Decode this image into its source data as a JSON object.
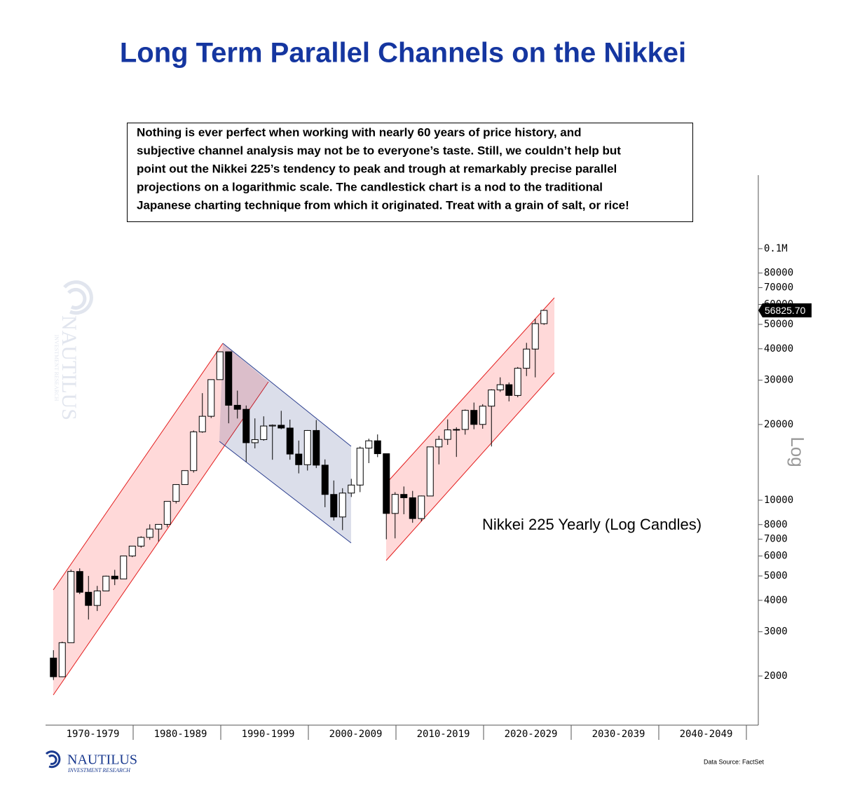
{
  "chart_data": {
    "type": "candlestick",
    "title": "Long Term Parallel Channels on the Nikkei",
    "note": [
      "Nothing is ever perfect when working with nearly 60 years of price history, and",
      "subjective channel analysis may not be to everyone’s taste. Still, we couldn’t help but",
      "point out the Nikkei 225’s tendency to peak and trough at remarkably precise parallel",
      "projections on a logarithmic scale. The candlestick chart is a nod to the traditional",
      "Japanese charting technique from which it originated.  Treat with a grain of salt, or rice!"
    ],
    "annotation": "Nikkei 225 Yearly (Log Candles)",
    "y_label": "Log",
    "log_scale": true,
    "categories": [
      "1970-1979",
      "1980-1989",
      "1990-1999",
      "2000-2009",
      "2010-2019",
      "2020-2029",
      "2030-2039",
      "2040-2049"
    ],
    "ylim": [
      1276,
      196000
    ],
    "yticks": [
      {
        "value": 100000,
        "label": "0.1M"
      },
      80000,
      70000,
      60000,
      50000,
      40000,
      30000,
      20000,
      10000,
      8000,
      7000,
      6000,
      5000,
      4000,
      3000,
      2000
    ],
    "open": [
      2358,
      1987,
      2714,
      5208,
      4307,
      3817,
      4359,
      4991,
      4866,
      6002,
      6570,
      7116,
      7682,
      8017,
      9894,
      11543,
      13113,
      18701,
      21564,
      30159,
      38916,
      23849,
      22984,
      16925,
      17417,
      19723,
      19868,
      19361,
      15259,
      13842,
      18934,
      13786,
      10543,
      8579,
      10677,
      11489,
      16111,
      17226,
      15308,
      8860,
      10546,
      10229,
      8455,
      10395,
      16291,
      17451,
      19034,
      19114,
      22765,
      20015,
      23657,
      27444,
      28792,
      26095,
      33464,
      39895,
      50339
    ],
    "high": [
      2534,
      2740,
      5300,
      5359,
      5000,
      4564,
      5013,
      5287,
      6018,
      6590,
      7188,
      8019,
      8026,
      9900,
      11577,
      13129,
      18937,
      26646,
      30159,
      38957,
      38951,
      27270,
      23801,
      21148,
      21552,
      20011,
      22666,
      20910,
      17264,
      19000,
      20833,
      14529,
      11979,
      11161,
      12163,
      16344,
      17563,
      18262,
      15308,
      10767,
      11339,
      10891,
      10433,
      16320,
      18030,
      20952,
      19494,
      22939,
      24448,
      24091,
      27602,
      30795,
      29388,
      33853,
      42224,
      52636,
      57000
    ],
    "low": [
      1929,
      1981,
      2712,
      4234,
      3355,
      3627,
      4358,
      4597,
      4867,
      5940,
      6475,
      6957,
      6849,
      7803,
      9703,
      11545,
      12881,
      18544,
      21217,
      30183,
      20222,
      21123,
      14194,
      16078,
      17242,
      14485,
      19161,
      14488,
      12787,
      13122,
      13423,
      9382,
      8303,
      7607,
      10299,
      10770,
      14045,
      14837,
      6994,
      7054,
      8796,
      8135,
      8238,
      10398,
      13885,
      16592,
      14864,
      18224,
      19155,
      19241,
      16358,
      26954,
      24717,
      25661,
      31156,
      30792,
      49800
    ],
    "close": [
      1987,
      2714,
      5208,
      4307,
      3817,
      4359,
      4991,
      4866,
      6002,
      6570,
      7116,
      7682,
      8017,
      9894,
      11543,
      13113,
      18701,
      21564,
      30159,
      38916,
      23849,
      22984,
      16925,
      17417,
      19723,
      19868,
      19361,
      15259,
      13842,
      18934,
      13786,
      10543,
      8579,
      10677,
      11489,
      16111,
      17226,
      15308,
      8860,
      10546,
      10229,
      8455,
      10395,
      16291,
      17451,
      19034,
      19114,
      22765,
      20015,
      23657,
      27444,
      28792,
      26095,
      33464,
      39895,
      50339,
      56825.7
    ],
    "up_color": "#ffffff",
    "down_color": "#000000",
    "last_value": {
      "value": 56825.7,
      "label": "56825.70"
    },
    "source": "Data Source: FactSet",
    "logo": "NAUTILUS",
    "logo_sub": "INVESTMENT RESEARCH"
  }
}
